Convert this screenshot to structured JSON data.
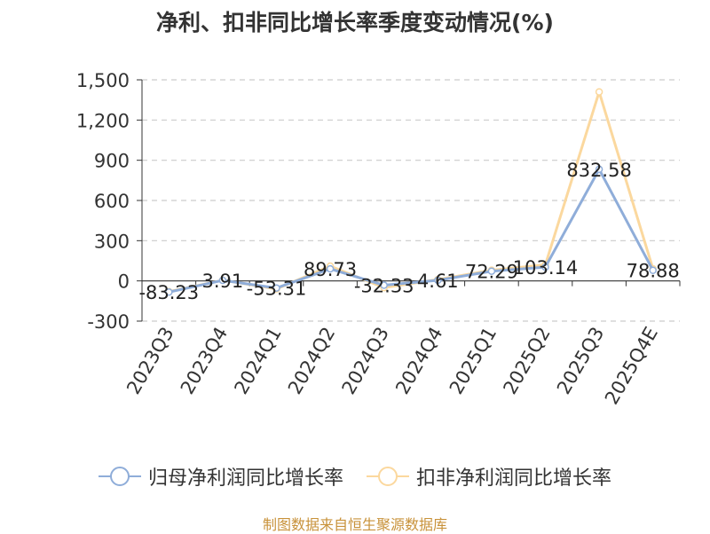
{
  "title": "净利、扣非同比增长率季度变动情况(%)",
  "source": "制图数据来自恒生聚源数据库",
  "colors": {
    "series1": "#8fadd9",
    "series2": "#fbd89e",
    "grid": "#cccccc",
    "axis": "#333333",
    "text": "#333333",
    "source": "#c8923a"
  },
  "chart_data": {
    "type": "line",
    "categories": [
      "2023Q3",
      "2023Q4",
      "2024Q1",
      "2024Q2",
      "2024Q3",
      "2024Q4",
      "2025Q1",
      "2025Q2",
      "2025Q3",
      "2025Q4E"
    ],
    "ylim": [
      -300,
      1500
    ],
    "yticks": [
      -300,
      0,
      300,
      600,
      900,
      1200,
      1500
    ],
    "ytick_labels": [
      "-300",
      "0",
      "300",
      "600",
      "900",
      "1,200",
      "1,500"
    ],
    "grid": "horizontal dashed",
    "legend_position": "bottom",
    "series": [
      {
        "name": "归母净利润同比增长率",
        "values": [
          -83.23,
          3.91,
          -53.31,
          89.73,
          -32.33,
          4.61,
          72.29,
          103.14,
          832.58,
          78.88
        ],
        "labels": [
          "-83.23",
          "3.91",
          "-53.31",
          "89.73",
          "-32.33",
          "4.61",
          "72.29",
          "103.14",
          "832.58",
          "78.88"
        ]
      },
      {
        "name": "扣非净利润同比增长率",
        "values": [
          -80,
          5,
          -60,
          110,
          -50,
          10,
          80,
          120,
          1410,
          90
        ]
      }
    ]
  }
}
